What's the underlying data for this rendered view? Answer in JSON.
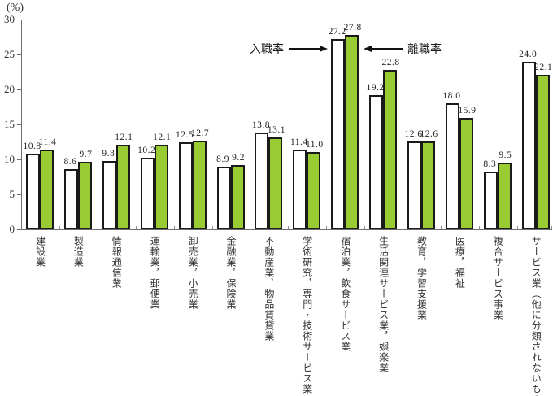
{
  "chart_data": {
    "type": "bar",
    "title": "",
    "y_unit": "(%)",
    "ylim": [
      0,
      30
    ],
    "yticks": [
      0,
      5,
      10,
      15,
      20,
      25,
      30
    ],
    "ytick_labels": [
      "0",
      "5",
      "10",
      "15",
      "20",
      "25",
      "30"
    ],
    "grid": false,
    "legend_position": "inline arrows beside 9th category bars",
    "value_label_format": "one-decimal",
    "categories": [
      "建設業",
      "製造業",
      "情報通信業",
      "運輸業，郵便業",
      "卸売業，小売業",
      "金融業，保険業",
      "不動産業，物品賃貸業",
      "学術研究，専門・技術サービス業",
      "宿泊業，飲食サービス業",
      "生活関連サービス業，娯楽業",
      "教育，学習支援業",
      "医療，福祉",
      "複合サービス事業",
      "サービス業（他に分類されないもの）"
    ],
    "series": [
      {
        "name": "入職率",
        "fill": "#FFFFFF",
        "values": [
          10.8,
          8.6,
          9.8,
          10.2,
          12.5,
          8.9,
          13.8,
          11.4,
          27.2,
          19.2,
          12.6,
          18.0,
          8.3,
          24.0
        ]
      },
      {
        "name": "離職率",
        "fill": "#99CC33",
        "values": [
          11.4,
          9.7,
          12.1,
          12.1,
          12.7,
          9.2,
          13.1,
          11.0,
          27.8,
          22.8,
          12.6,
          15.9,
          9.5,
          22.1
        ]
      }
    ],
    "colors": {
      "bar_border": "#1A1A1A",
      "axis": "#6E6E6E",
      "text": "#333333",
      "green_bar": "#99CC33"
    }
  }
}
